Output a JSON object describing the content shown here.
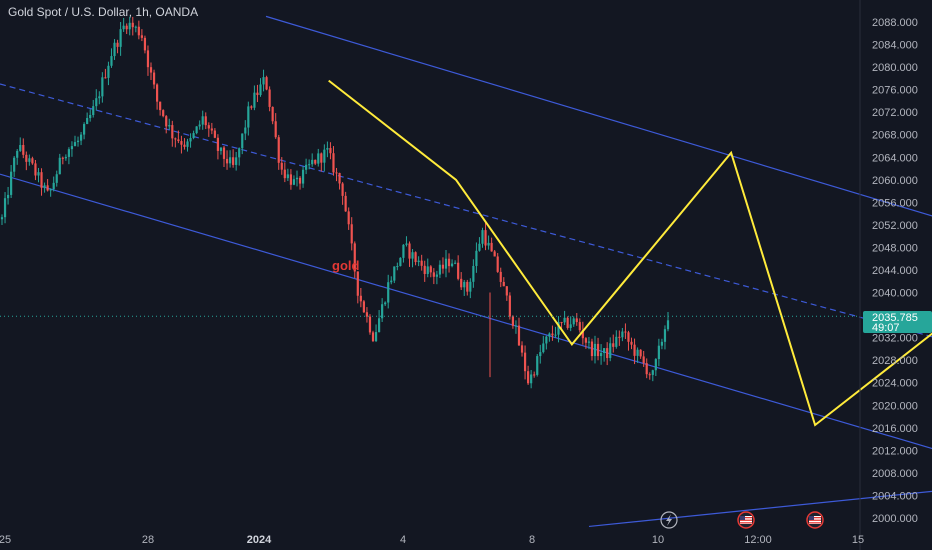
{
  "header": {
    "title": "Gold Spot / U.S. Dollar, 1h, OANDA"
  },
  "colors": {
    "background": "#131722",
    "up": "#26a69a",
    "down": "#ef5350",
    "channel": "#3d5ad8",
    "zigzag": "#ffeb3b",
    "price_label_bg": "#26a69a",
    "annotation": "#e53935"
  },
  "price_label": {
    "price": "2035.785",
    "countdown": "49:07"
  },
  "annotation_text": "gold",
  "flash_icon": "lightning-bolt-icon",
  "event_icons": [
    "us-flag-icon",
    "us-flag-icon"
  ],
  "chart_data": {
    "type": "candlestick",
    "title": "Gold Spot / U.S. Dollar, 1h, OANDA",
    "y_axis": {
      "min": 2000,
      "max": 2088,
      "ticks": [
        "2088.000",
        "2084.000",
        "2080.000",
        "2076.000",
        "2072.000",
        "2068.000",
        "2064.000",
        "2060.000",
        "2056.000",
        "2052.000",
        "2048.000",
        "2044.000",
        "2040.000",
        "2036.000",
        "2032.000",
        "2028.000",
        "2024.000",
        "2020.000",
        "2016.000",
        "2012.000",
        "2008.000",
        "2004.000",
        "2000.000"
      ]
    },
    "x_axis": {
      "ticks": [
        {
          "label": "25",
          "bold": false
        },
        {
          "label": "28",
          "bold": false
        },
        {
          "label": "2024",
          "bold": true
        },
        {
          "label": "4",
          "bold": false
        },
        {
          "label": "8",
          "bold": false
        },
        {
          "label": "10",
          "bold": false
        },
        {
          "label": "12:00",
          "bold": false
        },
        {
          "label": "15",
          "bold": false
        }
      ]
    },
    "last_price": 2035.785,
    "price_path": [
      [
        0,
        2053
      ],
      [
        1,
        2066
      ],
      [
        2,
        2062
      ],
      [
        3,
        2057
      ],
      [
        4,
        2065
      ],
      [
        5,
        2067
      ],
      [
        6,
        2073
      ],
      [
        7,
        2082
      ],
      [
        8,
        2088
      ],
      [
        9,
        2086
      ],
      [
        10,
        2074
      ],
      [
        11,
        2068
      ],
      [
        12,
        2066
      ],
      [
        13,
        2071
      ],
      [
        14,
        2065
      ],
      [
        15,
        2062
      ],
      [
        16,
        2073
      ],
      [
        17,
        2078
      ],
      [
        18,
        2062
      ],
      [
        19,
        2059
      ],
      [
        20,
        2063
      ],
      [
        21,
        2065
      ],
      [
        22,
        2058
      ],
      [
        23,
        2040
      ],
      [
        24,
        2032
      ],
      [
        25,
        2042
      ],
      [
        26,
        2048
      ],
      [
        27,
        2045
      ],
      [
        28,
        2043
      ],
      [
        29,
        2046
      ],
      [
        30,
        2040
      ],
      [
        31,
        2051
      ],
      [
        32,
        2044
      ],
      [
        33,
        2035
      ],
      [
        34,
        2024
      ],
      [
        35,
        2031
      ],
      [
        36,
        2034
      ],
      [
        37,
        2035
      ],
      [
        38,
        2030
      ],
      [
        39,
        2029
      ],
      [
        40,
        2033
      ],
      [
        41,
        2029
      ],
      [
        42,
        2025
      ],
      [
        43,
        2036
      ]
    ],
    "zigzag": [
      [
        2076.5,
        2077.6
      ],
      [
        2110.0,
        2060.0
      ],
      [
        2140.5,
        2030.8
      ],
      [
        2182.4,
        2064.8
      ],
      [
        2204.5,
        2016.5
      ],
      [
        2244.8,
        2037.7
      ],
      [
        2265.5,
        2041.0
      ],
      [
        2281.0,
        2007.5
      ]
    ],
    "channel_upper": [
      [
        2060.0,
        2089.0
      ],
      [
        2310.0,
        2038.5
      ]
    ],
    "channel_mid": [
      [
        1990.0,
        2077.0
      ],
      [
        2310.0,
        2018.5
      ]
    ],
    "channel_lower": [
      [
        1990.0,
        2061.0
      ],
      [
        2305.0,
        1998.5
      ]
    ],
    "support_line": [
      [
        2145.0,
        1998.5
      ],
      [
        2345.0,
        2012.3
      ]
    ],
    "annotations": [
      {
        "text": "gold"
      }
    ]
  }
}
